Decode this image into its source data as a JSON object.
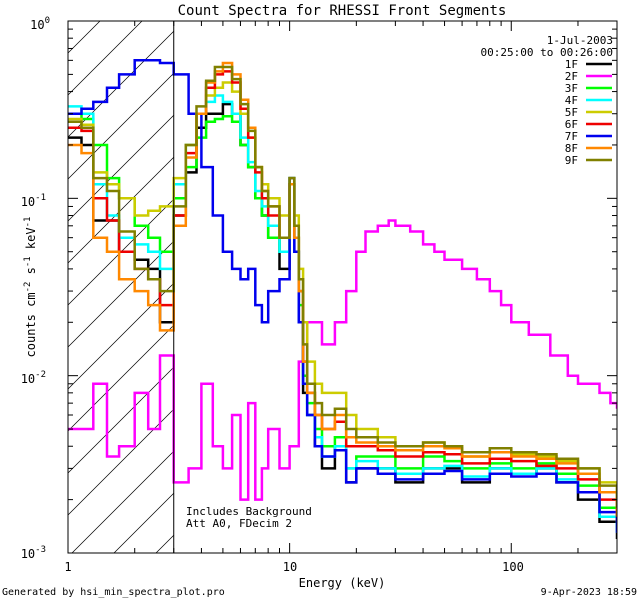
{
  "chart_data": {
    "type": "line",
    "title": "Count Spectra for RHESSI Front Segments",
    "xlabel": "Energy (keV)",
    "ylabel_parts": {
      "main": "counts cm",
      "exp1": "-2",
      "s": " s",
      "exp2": "-1",
      "unit": " keV",
      "exp3": "-1"
    },
    "x_scale": "log",
    "y_scale": "log",
    "xlim": [
      1.0,
      300.0
    ],
    "ylim": [
      0.001,
      1.0
    ],
    "x_tick_labels": [
      {
        "value": 1,
        "label": "1"
      },
      {
        "value": 10,
        "label": "10"
      },
      {
        "value": 100,
        "label": "100"
      }
    ],
    "y_tick_labels": [
      {
        "value": 1,
        "base": "10",
        "exp": "0"
      },
      {
        "value": 0.1,
        "base": "10",
        "exp": "-1"
      },
      {
        "value": 0.01,
        "base": "10",
        "exp": "-2"
      },
      {
        "value": 0.001,
        "base": "10",
        "exp": "-3"
      }
    ],
    "shaded_region": {
      "x_min": 1.0,
      "x_max": 3.0
    },
    "date": "1-Jul-2003",
    "time_range": "00:25:00 to 00:26:00",
    "annotation_lines": [
      "Includes Background",
      "Att A0, FDecim 2"
    ],
    "series": [
      {
        "name": "1F",
        "color": "#000000",
        "x": [
          1,
          1.15,
          1.3,
          1.5,
          1.7,
          2.0,
          2.3,
          2.6,
          3.0,
          3.4,
          3.8,
          4.2,
          4.6,
          5.0,
          5.5,
          6.0,
          6.5,
          7.0,
          7.5,
          8.0,
          9.0,
          10.0,
          10.5,
          11.0,
          11.5,
          12.0,
          13,
          14,
          16,
          18,
          20,
          25,
          30,
          40,
          50,
          60,
          80,
          100,
          130,
          160,
          200,
          250,
          300
        ],
        "y": [
          0.22,
          0.2,
          0.075,
          0.075,
          0.05,
          0.045,
          0.04,
          0.02,
          0.08,
          0.14,
          0.25,
          0.3,
          0.3,
          0.34,
          0.3,
          0.2,
          0.15,
          0.1,
          0.08,
          0.06,
          0.04,
          0.12,
          0.05,
          0.02,
          0.008,
          0.006,
          0.004,
          0.003,
          0.004,
          0.0025,
          0.003,
          0.003,
          0.0025,
          0.003,
          0.003,
          0.0025,
          0.003,
          0.0028,
          0.003,
          0.0025,
          0.002,
          0.0015,
          0.0012
        ]
      },
      {
        "name": "2F",
        "color": "#ff00ff",
        "x": [
          1,
          1.15,
          1.3,
          1.5,
          1.7,
          2.0,
          2.3,
          2.6,
          3.0,
          3.5,
          4.0,
          4.5,
          5.0,
          5.5,
          6.0,
          6.5,
          7.0,
          7.5,
          8.0,
          9.0,
          10.0,
          11.0,
          12.0,
          14,
          16,
          18,
          20,
          22,
          25,
          28,
          30,
          35,
          40,
          45,
          50,
          60,
          70,
          80,
          90,
          100,
          120,
          150,
          180,
          200,
          250,
          280,
          300
        ],
        "y": [
          0.005,
          0.005,
          0.009,
          0.0035,
          0.004,
          0.008,
          0.005,
          0.013,
          0.0025,
          0.003,
          0.009,
          0.004,
          0.003,
          0.006,
          0.002,
          0.007,
          0.002,
          0.003,
          0.005,
          0.003,
          0.004,
          0.012,
          0.02,
          0.015,
          0.02,
          0.03,
          0.05,
          0.065,
          0.07,
          0.075,
          0.07,
          0.065,
          0.055,
          0.05,
          0.045,
          0.04,
          0.035,
          0.03,
          0.025,
          0.02,
          0.017,
          0.013,
          0.01,
          0.009,
          0.008,
          0.007,
          0.0065
        ]
      },
      {
        "name": "3F",
        "color": "#00ff00",
        "x": [
          1,
          1.15,
          1.3,
          1.5,
          1.7,
          2.0,
          2.3,
          2.6,
          3.0,
          3.4,
          3.8,
          4.2,
          4.6,
          5.0,
          5.5,
          6.0,
          6.5,
          7.0,
          7.5,
          8.0,
          9.0,
          10.0,
          10.5,
          11.0,
          11.5,
          12.0,
          13,
          14,
          16,
          18,
          20,
          25,
          30,
          40,
          50,
          60,
          80,
          100,
          130,
          160,
          200,
          250,
          300
        ],
        "y": [
          0.3,
          0.28,
          0.2,
          0.13,
          0.1,
          0.07,
          0.06,
          0.05,
          0.1,
          0.15,
          0.22,
          0.27,
          0.28,
          0.29,
          0.27,
          0.2,
          0.15,
          0.1,
          0.08,
          0.06,
          0.05,
          0.13,
          0.06,
          0.025,
          0.01,
          0.007,
          0.005,
          0.004,
          0.0045,
          0.003,
          0.0035,
          0.0035,
          0.003,
          0.0035,
          0.0033,
          0.003,
          0.0032,
          0.003,
          0.0032,
          0.0028,
          0.0024,
          0.0018,
          0.0014
        ]
      },
      {
        "name": "4F",
        "color": "#00ffff",
        "x": [
          1,
          1.15,
          1.3,
          1.5,
          1.7,
          2.0,
          2.3,
          2.6,
          3.0,
          3.4,
          3.8,
          4.2,
          4.6,
          5.0,
          5.5,
          6.0,
          6.5,
          7.0,
          7.5,
          8.0,
          9.0,
          10.0,
          10.5,
          11.0,
          11.5,
          12.0,
          13,
          14,
          16,
          18,
          20,
          25,
          30,
          40,
          50,
          60,
          80,
          100,
          130,
          160,
          200,
          250,
          300
        ],
        "y": [
          0.33,
          0.3,
          0.12,
          0.08,
          0.06,
          0.055,
          0.05,
          0.04,
          0.12,
          0.2,
          0.3,
          0.35,
          0.38,
          0.35,
          0.3,
          0.22,
          0.16,
          0.11,
          0.09,
          0.07,
          0.05,
          0.12,
          0.05,
          0.02,
          0.009,
          0.006,
          0.0045,
          0.0035,
          0.004,
          0.003,
          0.0033,
          0.003,
          0.0028,
          0.003,
          0.0031,
          0.0027,
          0.003,
          0.0028,
          0.003,
          0.0026,
          0.0022,
          0.0016,
          0.0013
        ]
      },
      {
        "name": "5F",
        "color": "#cccc00",
        "x": [
          1,
          1.15,
          1.3,
          1.5,
          1.7,
          2.0,
          2.3,
          2.6,
          3.0,
          3.4,
          3.8,
          4.2,
          4.6,
          5.0,
          5.5,
          6.0,
          6.5,
          7.0,
          7.5,
          8.0,
          9.0,
          10.0,
          10.5,
          11.0,
          11.5,
          12.0,
          13,
          14,
          16,
          18,
          20,
          25,
          30,
          40,
          50,
          60,
          80,
          100,
          130,
          160,
          200,
          250,
          300
        ],
        "y": [
          0.28,
          0.26,
          0.14,
          0.12,
          0.1,
          0.08,
          0.085,
          0.09,
          0.13,
          0.2,
          0.3,
          0.38,
          0.42,
          0.45,
          0.4,
          0.3,
          0.22,
          0.15,
          0.12,
          0.1,
          0.08,
          0.13,
          0.08,
          0.04,
          0.02,
          0.012,
          0.009,
          0.008,
          0.008,
          0.006,
          0.005,
          0.0045,
          0.004,
          0.0042,
          0.004,
          0.0035,
          0.0037,
          0.0036,
          0.0035,
          0.0033,
          0.003,
          0.0025,
          0.002
        ]
      },
      {
        "name": "6F",
        "color": "#ee0000",
        "x": [
          1,
          1.15,
          1.3,
          1.5,
          1.7,
          2.0,
          2.3,
          2.6,
          3.0,
          3.4,
          3.8,
          4.2,
          4.6,
          5.0,
          5.5,
          6.0,
          6.5,
          7.0,
          7.5,
          8.0,
          9.0,
          10.0,
          10.5,
          11.0,
          11.5,
          12.0,
          13,
          14,
          16,
          18,
          20,
          25,
          30,
          40,
          50,
          60,
          80,
          100,
          130,
          160,
          200,
          250,
          300
        ],
        "y": [
          0.25,
          0.24,
          0.1,
          0.075,
          0.05,
          0.04,
          0.035,
          0.025,
          0.08,
          0.18,
          0.3,
          0.42,
          0.5,
          0.52,
          0.45,
          0.32,
          0.22,
          0.14,
          0.1,
          0.08,
          0.06,
          0.12,
          0.06,
          0.03,
          0.012,
          0.008,
          0.006,
          0.005,
          0.0055,
          0.004,
          0.004,
          0.0038,
          0.0035,
          0.0037,
          0.0036,
          0.0032,
          0.0034,
          0.0033,
          0.0031,
          0.003,
          0.0026,
          0.002,
          0.0015
        ]
      },
      {
        "name": "7F",
        "color": "#0000ee",
        "x": [
          1,
          1.15,
          1.3,
          1.5,
          1.7,
          2.0,
          2.3,
          2.6,
          3.0,
          3.5,
          4.0,
          4.5,
          5.0,
          5.5,
          6.0,
          6.5,
          7.0,
          7.5,
          8.0,
          9.0,
          10.0,
          10.5,
          11.0,
          11.5,
          12.0,
          13,
          14,
          16,
          18,
          20,
          25,
          30,
          40,
          50,
          60,
          80,
          100,
          130,
          160,
          200,
          250,
          300
        ],
        "y": [
          0.3,
          0.32,
          0.35,
          0.42,
          0.5,
          0.6,
          0.6,
          0.58,
          0.5,
          0.3,
          0.15,
          0.08,
          0.05,
          0.04,
          0.035,
          0.04,
          0.025,
          0.02,
          0.03,
          0.035,
          0.13,
          0.05,
          0.02,
          0.009,
          0.006,
          0.004,
          0.0035,
          0.0038,
          0.0025,
          0.003,
          0.0028,
          0.0026,
          0.0028,
          0.0029,
          0.0026,
          0.0028,
          0.0027,
          0.0028,
          0.0025,
          0.0022,
          0.0017,
          0.0013
        ]
      },
      {
        "name": "8F",
        "color": "#ff8800",
        "x": [
          1,
          1.15,
          1.3,
          1.5,
          1.7,
          2.0,
          2.3,
          2.6,
          3.0,
          3.4,
          3.8,
          4.2,
          4.6,
          5.0,
          5.5,
          6.0,
          6.5,
          7.0,
          7.5,
          8.0,
          9.0,
          10.0,
          10.5,
          11.0,
          11.5,
          12.0,
          13,
          14,
          16,
          18,
          20,
          25,
          30,
          40,
          50,
          60,
          80,
          100,
          130,
          160,
          200,
          250,
          300
        ],
        "y": [
          0.2,
          0.18,
          0.06,
          0.05,
          0.035,
          0.03,
          0.025,
          0.018,
          0.07,
          0.17,
          0.3,
          0.45,
          0.52,
          0.58,
          0.5,
          0.36,
          0.25,
          0.15,
          0.11,
          0.09,
          0.06,
          0.12,
          0.06,
          0.03,
          0.012,
          0.008,
          0.006,
          0.005,
          0.006,
          0.0045,
          0.0042,
          0.004,
          0.0038,
          0.004,
          0.0039,
          0.0035,
          0.0037,
          0.0035,
          0.0034,
          0.0032,
          0.0028,
          0.0022,
          0.0016
        ]
      },
      {
        "name": "9F",
        "color": "#808000",
        "x": [
          1,
          1.15,
          1.3,
          1.5,
          1.7,
          2.0,
          2.3,
          2.6,
          3.0,
          3.4,
          3.8,
          4.2,
          4.6,
          5.0,
          5.5,
          6.0,
          6.5,
          7.0,
          7.5,
          8.0,
          9.0,
          10.0,
          10.5,
          11.0,
          11.5,
          12.0,
          13,
          14,
          16,
          18,
          20,
          25,
          30,
          40,
          50,
          60,
          80,
          100,
          130,
          160,
          200,
          250,
          300
        ],
        "y": [
          0.27,
          0.25,
          0.13,
          0.11,
          0.065,
          0.04,
          0.035,
          0.03,
          0.09,
          0.2,
          0.33,
          0.46,
          0.55,
          0.55,
          0.47,
          0.34,
          0.24,
          0.15,
          0.11,
          0.09,
          0.06,
          0.13,
          0.07,
          0.035,
          0.015,
          0.009,
          0.007,
          0.006,
          0.0065,
          0.005,
          0.0045,
          0.0042,
          0.004,
          0.0042,
          0.004,
          0.0037,
          0.0039,
          0.0037,
          0.0036,
          0.0034,
          0.003,
          0.0024,
          0.0018
        ]
      }
    ]
  },
  "footer": {
    "left": "Generated by hsi_min_spectra_plot.pro",
    "right": "9-Apr-2023 18:59"
  }
}
